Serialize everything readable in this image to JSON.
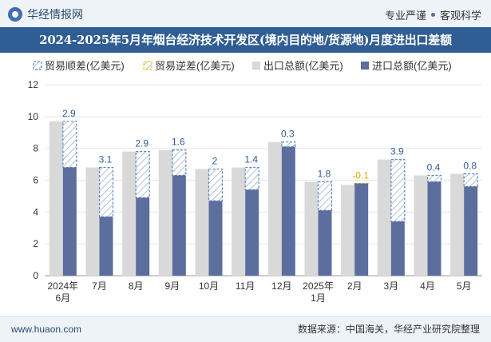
{
  "header": {
    "brand": "华经情报网",
    "slogan_left": "专业严谨",
    "slogan_right": "客观科学"
  },
  "title": "2024-2025年5月年烟台经济技术开发区(境内目的地/货源地)月度进出口差额",
  "footer": {
    "website": "www.huaon.com",
    "source": "数据来源：中国海关，华经产业研究院整理"
  },
  "colors": {
    "surplus": "#5b86c0",
    "deficit": "#f2c200",
    "exports": "#d9d9d9",
    "imports": "#5b6e9e",
    "title_bg": "#2f5d94"
  },
  "chart_data": {
    "type": "bar",
    "categories": [
      [
        "2024年",
        "6月"
      ],
      [
        "7月"
      ],
      [
        "8月"
      ],
      [
        "9月"
      ],
      [
        "10月"
      ],
      [
        "11月"
      ],
      [
        "12月"
      ],
      [
        "2025年",
        "1月"
      ],
      [
        "2月"
      ],
      [
        "3月"
      ],
      [
        "4月"
      ],
      [
        "5月"
      ]
    ],
    "series": [
      {
        "name": "贸易顺差(亿美元)",
        "values": [
          2.9,
          3.1,
          2.9,
          1.6,
          2,
          1.4,
          0.3,
          1.8,
          null,
          3.9,
          0.4,
          0.8
        ]
      },
      {
        "name": "贸易逆差(亿美元)",
        "values": [
          null,
          null,
          null,
          null,
          null,
          null,
          null,
          null,
          -0.1,
          null,
          null,
          null
        ]
      },
      {
        "name": "出口总额(亿美元)",
        "values": [
          9.7,
          6.8,
          7.8,
          7.9,
          6.7,
          6.8,
          8.4,
          5.9,
          5.7,
          7.3,
          6.3,
          6.4
        ]
      },
      {
        "name": "进口总额(亿美元)",
        "values": [
          6.8,
          3.7,
          4.9,
          6.3,
          4.7,
          5.4,
          8.1,
          4.1,
          5.8,
          3.4,
          5.9,
          5.6
        ]
      }
    ],
    "balance_labels": [
      "2.9",
      "3.1",
      "2.9",
      "1.6",
      "2",
      "1.4",
      "0.3",
      "1.8",
      "-0.1",
      "3.9",
      "0.4",
      "0.8"
    ],
    "ylim": [
      0,
      12
    ],
    "yticks": [
      0,
      2,
      4,
      6,
      8,
      10,
      12
    ],
    "grid": true,
    "legend_position": "top"
  }
}
